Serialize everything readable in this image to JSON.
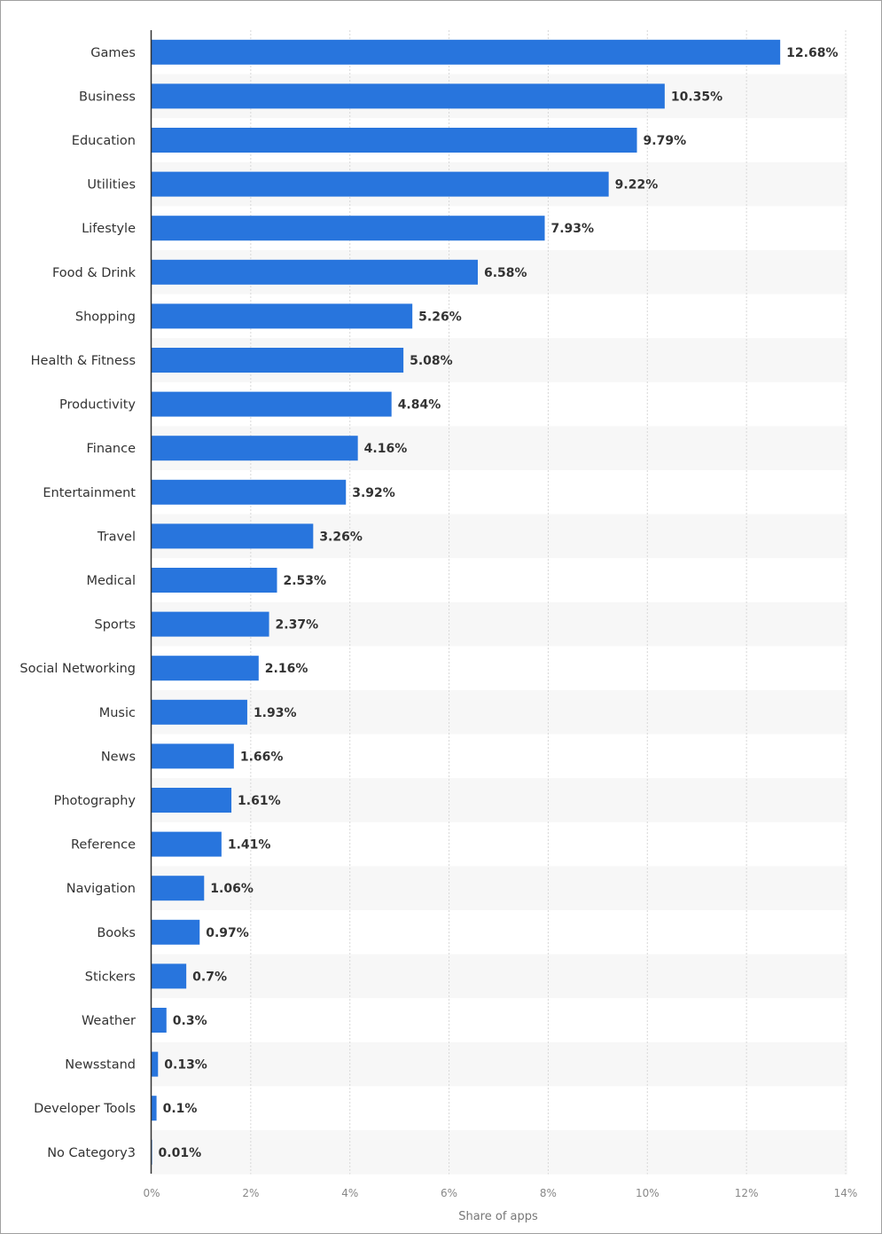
{
  "chart_data": {
    "type": "bar",
    "orientation": "horizontal",
    "categories": [
      "Games",
      "Business",
      "Education",
      "Utilities",
      "Lifestyle",
      "Food & Drink",
      "Shopping",
      "Health & Fitness",
      "Productivity",
      "Finance",
      "Entertainment",
      "Travel",
      "Medical",
      "Sports",
      "Social Networking",
      "Music",
      "News",
      "Photography",
      "Reference",
      "Navigation",
      "Books",
      "Stickers",
      "Weather",
      "Newsstand",
      "Developer Tools",
      "No Category3"
    ],
    "values": [
      12.68,
      10.35,
      9.79,
      9.22,
      7.93,
      6.58,
      5.26,
      5.08,
      4.84,
      4.16,
      3.92,
      3.26,
      2.53,
      2.37,
      2.16,
      1.93,
      1.66,
      1.61,
      1.41,
      1.06,
      0.97,
      0.7,
      0.3,
      0.13,
      0.1,
      0.01
    ],
    "value_labels": [
      "12.68%",
      "10.35%",
      "9.79%",
      "9.22%",
      "7.93%",
      "6.58%",
      "5.26%",
      "5.08%",
      "4.84%",
      "4.16%",
      "3.92%",
      "3.26%",
      "2.53%",
      "2.37%",
      "2.16%",
      "1.93%",
      "1.66%",
      "1.61%",
      "1.41%",
      "1.06%",
      "0.97%",
      "0.7%",
      "0.3%",
      "0.13%",
      "0.1%",
      "0.01%"
    ],
    "xlabel": "Share of apps",
    "ylabel": "",
    "xlim": [
      0,
      14
    ],
    "ticks": [
      0,
      2,
      4,
      6,
      8,
      10,
      12,
      14
    ],
    "tick_labels": [
      "0%",
      "2%",
      "4%",
      "6%",
      "8%",
      "10%",
      "12%",
      "14%"
    ],
    "grid": true,
    "colors": {
      "bar": "#2875dd",
      "stripe": "#f7f7f7",
      "grid": "#d8d8d8"
    }
  }
}
